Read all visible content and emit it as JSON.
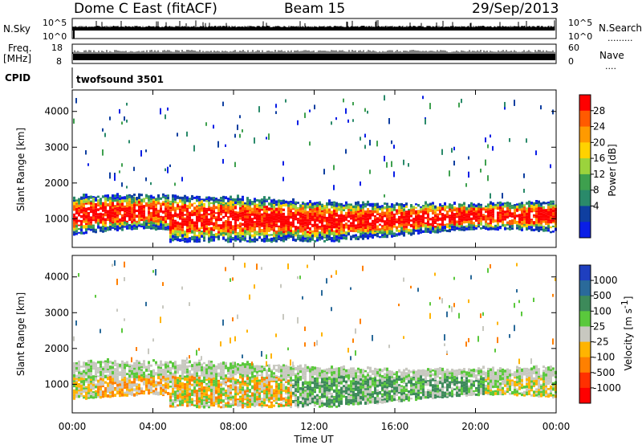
{
  "header": {
    "station": "Dome C East (fitACF)",
    "beam": "Beam 15",
    "date": "29/Sep/2013"
  },
  "chart_data": [
    {
      "type": "line",
      "panel": "nsky-nsearch",
      "left_label": "N.Sky",
      "right_label": "N.Search",
      "left_ticks": [
        "10^5",
        "10^0"
      ],
      "right_ticks": [
        "10^5",
        "10^0"
      ]
    },
    {
      "type": "line",
      "panel": "freq-nave",
      "left_label_1": "Freq.",
      "left_label_2": "[MHz]",
      "right_label": "Nave",
      "left_ticks": [
        "18",
        "8"
      ],
      "right_ticks": [
        "60",
        "0"
      ],
      "cpid_label": "CPID",
      "cpid_value": "twofsound 3501"
    },
    {
      "type": "heatmap",
      "panel": "power",
      "ylabel": "Slant Range [km]",
      "y_ticks": [
        "4000",
        "3000",
        "2000",
        "1000"
      ],
      "y_values": [
        4000,
        3000,
        2000,
        1000
      ],
      "ylim": [
        200,
        4600
      ],
      "colorbar_label": "Power [dB]",
      "colorbar_ticks": [
        "28",
        "24",
        "20",
        "16",
        "12",
        "8",
        "4"
      ],
      "colorbar_colors": [
        "#ff0000",
        "#ff5a00",
        "#ff9a00",
        "#ffd200",
        "#9bd33c",
        "#3ea04e",
        "#2a8a6a",
        "#0f3fa0",
        "#0a1ee6"
      ]
    },
    {
      "type": "heatmap",
      "panel": "velocity",
      "ylabel": "Slant Range [km]",
      "y_ticks": [
        "4000",
        "3000",
        "2000",
        "1000"
      ],
      "y_values": [
        4000,
        3000,
        2000,
        1000
      ],
      "ylim": [
        200,
        4600
      ],
      "xlabel": "Time UT",
      "x_ticks": [
        "00:00",
        "04:00",
        "08:00",
        "12:00",
        "16:00",
        "20:00",
        "00:00"
      ],
      "x_hours": [
        0,
        4,
        8,
        12,
        16,
        20,
        24
      ],
      "colorbar_label": "Velocity [m s",
      "colorbar_label_sup": "-1",
      "colorbar_label_end": "]",
      "colorbar_ticks": [
        "1000",
        "500",
        "100",
        "25",
        "-25",
        "-100",
        "-500",
        "-1000"
      ],
      "colorbar_colors": [
        "#1f3fbf",
        "#2a6a9a",
        "#3d8a5a",
        "#5ac83c",
        "#c8c8c0",
        "#ffb400",
        "#ff8000",
        "#ff3000",
        "#ff0000"
      ]
    }
  ]
}
